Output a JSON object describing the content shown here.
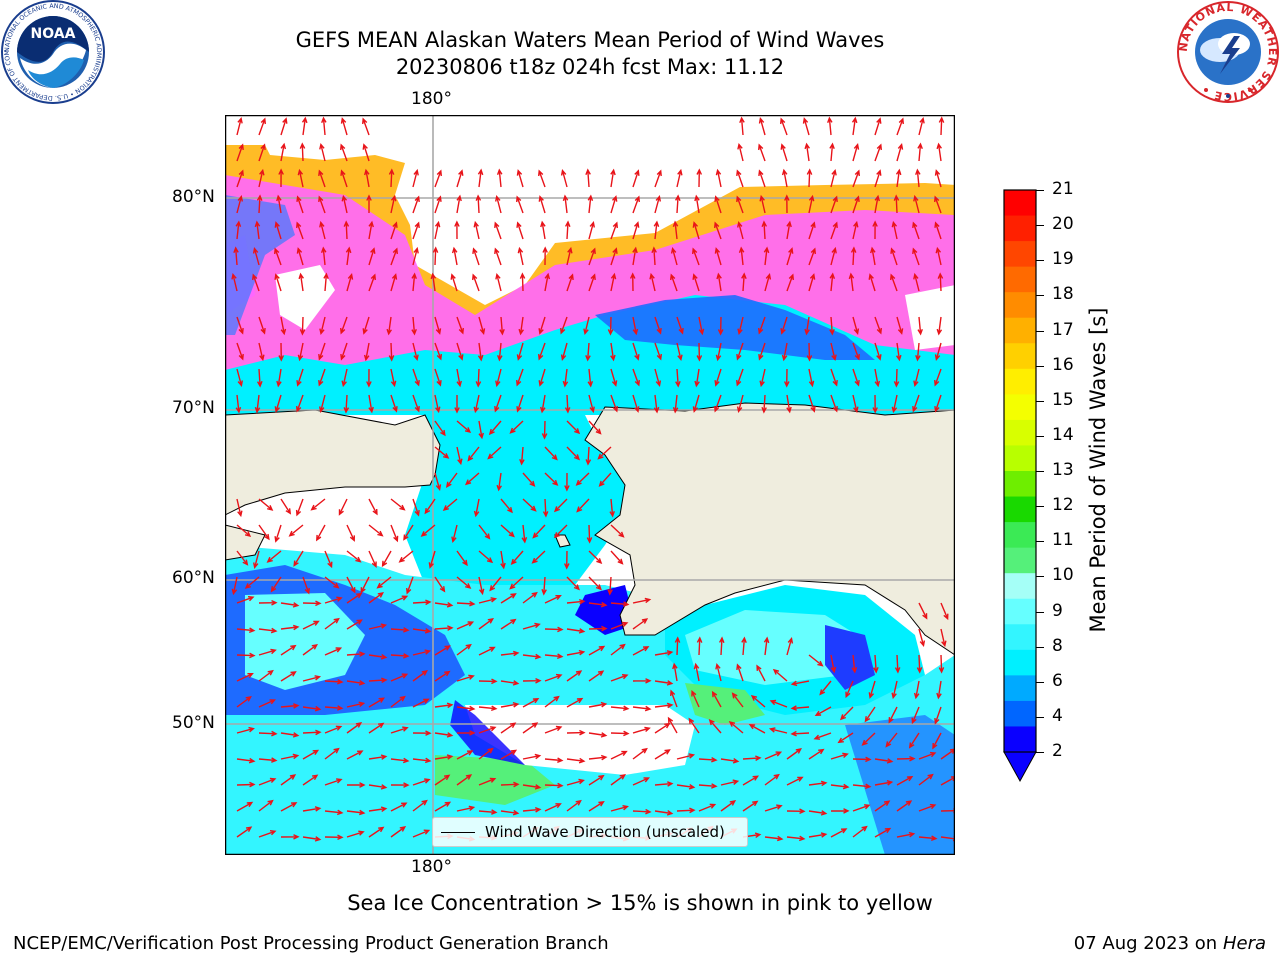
{
  "header": {
    "title_line1": "GEFS MEAN Alaskan Waters Mean Period of Wind Waves",
    "title_line2": "20230806 t18z 024h fcst   Max: 11.12"
  },
  "logos": {
    "noaa_text": "NOAA",
    "noaa_ring": "NATIONAL OCEANIC AND ATMOSPHERIC ADMINISTRATION • U.S. DEPARTMENT OF COMMERCE",
    "nws_ring": "NATIONAL WEATHER SERVICE"
  },
  "map": {
    "top_lon_label": "180°",
    "bottom_lon_label": "180°",
    "lat_labels": [
      "80°N",
      "70°N",
      "60°N",
      "50°N"
    ],
    "legend_label": "Wind Wave Direction (unscaled)",
    "arrow_color": "#e8141a",
    "land_color": "#efedde"
  },
  "colorbar": {
    "label": "Mean Period of Wind Waves [s]",
    "ticks": [
      "21",
      "20",
      "19",
      "18",
      "17",
      "16",
      "15",
      "14",
      "13",
      "12",
      "11",
      "10",
      "9",
      "8",
      "6",
      "4",
      "2"
    ],
    "colors": [
      "#ff0000",
      "#ff2000",
      "#ff4600",
      "#ff6a00",
      "#ff8c00",
      "#ffb000",
      "#ffd000",
      "#ffee00",
      "#f4ff00",
      "#d8ff00",
      "#b8ff00",
      "#6eee00",
      "#19d900",
      "#3bea55",
      "#55f07a",
      "#a5fff7",
      "#66ffff",
      "#33f5ff",
      "#00f0ff",
      "#00aaff",
      "#0066ff",
      "#0a00ff"
    ],
    "extend_color": "#0a00ff"
  },
  "captions": {
    "sea_ice": "Sea Ice Concentration > 15% is shown in pink to yellow",
    "credit": "NCEP/EMC/Verification Post Processing Product Generation Branch",
    "date": "07 Aug 2023 on",
    "machine": "Hera"
  }
}
